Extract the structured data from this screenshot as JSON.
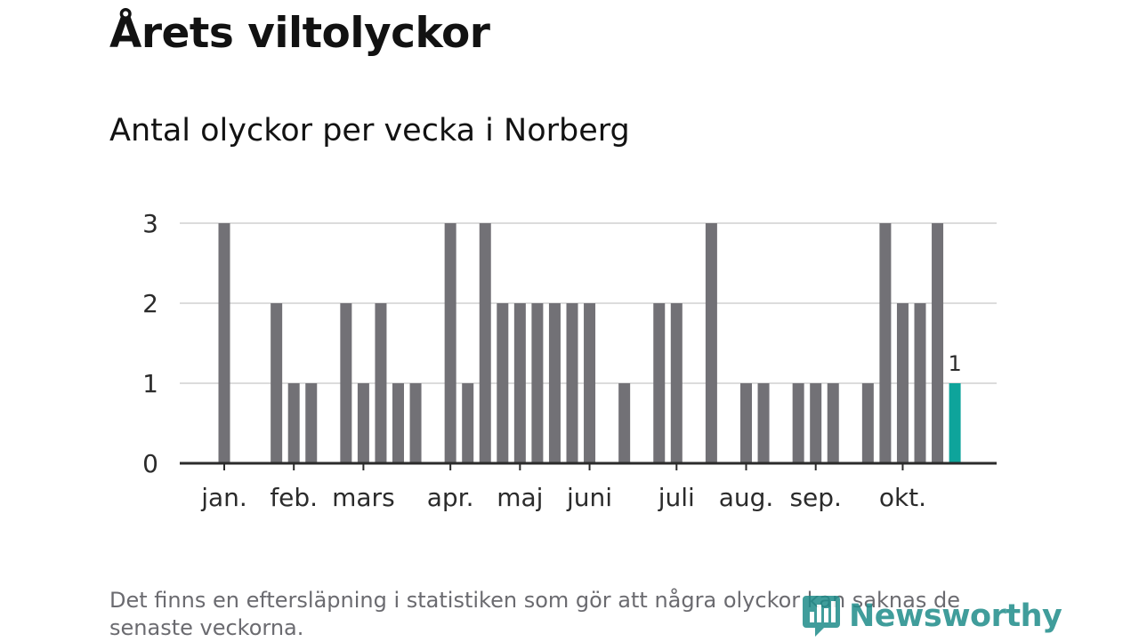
{
  "title": "Årets viltolyckor",
  "subtitle": "Antal olyckor per vecka i Norberg",
  "note": "Det finns en eftersläpning i statistiken som gör att några olyckor kan saknas de senaste veckorna.",
  "logo": {
    "text": "Newsworthy"
  },
  "colors": {
    "bar": "#727176",
    "highlight": "#0ea49b",
    "grid": "#dcdcdc",
    "axis": "#2b2b2b"
  },
  "chart_data": {
    "type": "bar",
    "xlabel": "",
    "ylabel": "",
    "ylim": [
      0,
      3
    ],
    "yticks": [
      0,
      1,
      2,
      3
    ],
    "grid": true,
    "weeks": [
      1,
      2,
      3,
      4,
      5,
      6,
      7,
      8,
      9,
      10,
      11,
      12,
      13,
      14,
      15,
      16,
      17,
      18,
      19,
      20,
      21,
      22,
      23,
      24,
      25,
      26,
      27,
      28,
      29,
      30,
      31,
      32,
      33,
      34,
      35,
      36,
      37,
      38,
      39,
      40,
      41,
      42,
      43
    ],
    "values": [
      3,
      0,
      0,
      2,
      1,
      1,
      0,
      2,
      1,
      2,
      1,
      1,
      0,
      3,
      1,
      3,
      2,
      2,
      2,
      2,
      2,
      2,
      0,
      1,
      0,
      2,
      2,
      0,
      3,
      0,
      1,
      1,
      0,
      1,
      1,
      1,
      0,
      1,
      3,
      2,
      2,
      3,
      1
    ],
    "month_labels": [
      {
        "label": "jan.",
        "week": 1
      },
      {
        "label": "feb.",
        "week": 5
      },
      {
        "label": "mars",
        "week": 9
      },
      {
        "label": "apr.",
        "week": 14
      },
      {
        "label": "maj",
        "week": 18
      },
      {
        "label": "juni",
        "week": 22
      },
      {
        "label": "juli",
        "week": 27
      },
      {
        "label": "aug.",
        "week": 31
      },
      {
        "label": "sep.",
        "week": 35
      },
      {
        "label": "okt.",
        "week": 40
      }
    ],
    "highlight": {
      "week": 43,
      "value": 1,
      "label": "1"
    }
  }
}
